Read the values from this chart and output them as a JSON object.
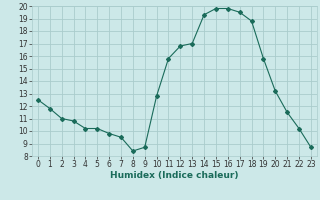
{
  "x": [
    0,
    1,
    2,
    3,
    4,
    5,
    6,
    7,
    8,
    9,
    10,
    11,
    12,
    13,
    14,
    15,
    16,
    17,
    18,
    19,
    20,
    21,
    22,
    23
  ],
  "y": [
    12.5,
    11.8,
    11.0,
    10.8,
    10.2,
    10.2,
    9.8,
    9.5,
    8.4,
    8.7,
    12.8,
    15.8,
    16.8,
    17.0,
    19.3,
    19.8,
    19.8,
    19.5,
    18.8,
    15.8,
    13.2,
    11.5,
    10.2,
    8.7
  ],
  "line_color": "#1a6b5a",
  "marker": "D",
  "markersize": 2,
  "bg_color": "#cce8e8",
  "grid_color": "#aacccc",
  "xlabel": "Humidex (Indice chaleur)",
  "xlim": [
    -0.5,
    23.5
  ],
  "ylim": [
    8,
    20
  ],
  "yticks": [
    8,
    9,
    10,
    11,
    12,
    13,
    14,
    15,
    16,
    17,
    18,
    19,
    20
  ],
  "xticks": [
    0,
    1,
    2,
    3,
    4,
    5,
    6,
    7,
    8,
    9,
    10,
    11,
    12,
    13,
    14,
    15,
    16,
    17,
    18,
    19,
    20,
    21,
    22,
    23
  ],
  "xlabel_fontsize": 6.5,
  "tick_fontsize": 5.5
}
